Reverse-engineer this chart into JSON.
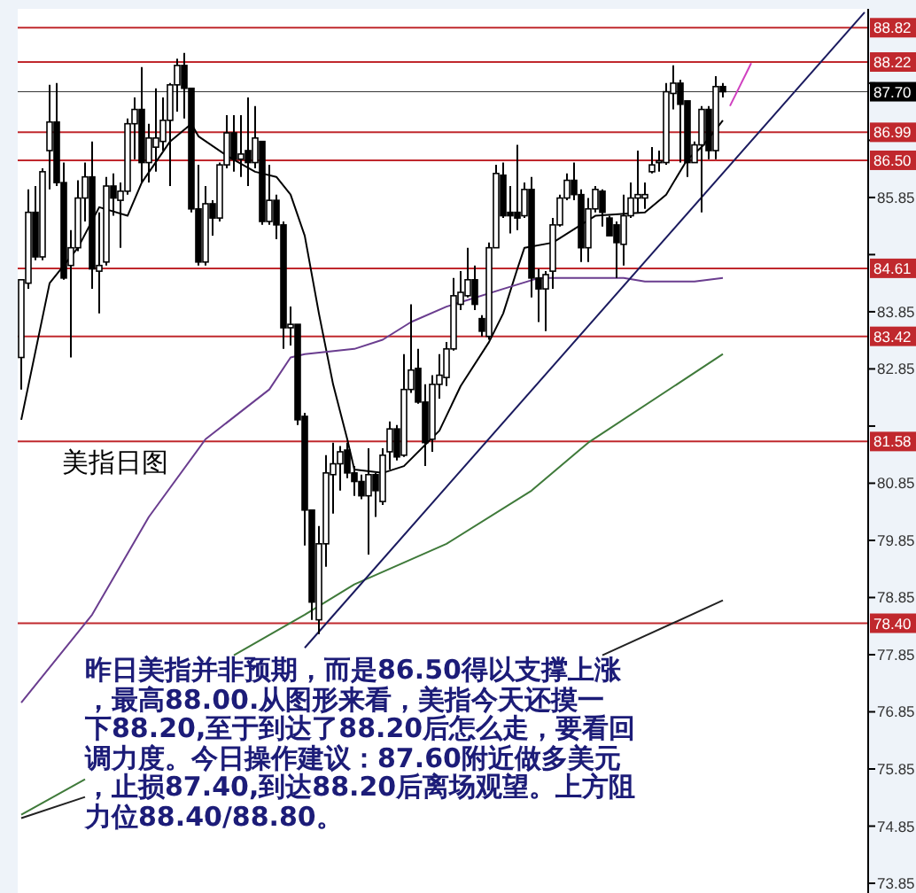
{
  "chart_data": {
    "type": "candlestick",
    "title": "美指日图",
    "annotations": [
      "昨日美指并非预期，而是86.50得以支撑上涨",
      "，最高88.00.从图形来看，美指今天还摸一",
      "下88.20,至于到达了88.20后怎么走，要看回",
      "调力度。今日操作建议：87.60附近做多美元",
      "，止损87.40,到达88.20后离场观望。上方阻",
      "力位88.40/88.80。"
    ],
    "categories": [
      null,
      null,
      null,
      null,
      null,
      null,
      null,
      null,
      null,
      null,
      null,
      null,
      null,
      null,
      null,
      null,
      null,
      null,
      null,
      null,
      null,
      null,
      null,
      null,
      null,
      null,
      null,
      null,
      null,
      null,
      null,
      null,
      null,
      null,
      null,
      null,
      null,
      null,
      null,
      null,
      null,
      null,
      null,
      null,
      null,
      null,
      null,
      null,
      null,
      null,
      null,
      null,
      null,
      null,
      null,
      null,
      null,
      null,
      null,
      null,
      null,
      null,
      null,
      null,
      null,
      null,
      null,
      null,
      null,
      null,
      null,
      null,
      null,
      null,
      null,
      null,
      null,
      null,
      null,
      null,
      null,
      null,
      null,
      null,
      null,
      null,
      null,
      null,
      null,
      null,
      null,
      null,
      null,
      null,
      null,
      null,
      null,
      null,
      null,
      null,
      null,
      null,
      null,
      null,
      null,
      null,
      null,
      null,
      null,
      null,
      null,
      null,
      null,
      null,
      null,
      null,
      null,
      null,
      null,
      null
    ],
    "ohlc": [
      [
        83.05,
        84.41,
        82.49,
        84.41
      ],
      [
        84.35,
        85.99,
        84.25,
        85.59
      ],
      [
        85.59,
        86.05,
        84.75,
        84.81
      ],
      [
        84.81,
        86.36,
        84.75,
        86.3
      ],
      [
        86.67,
        87.82,
        85.99,
        87.17
      ],
      [
        87.17,
        87.85,
        86.05,
        86.11
      ],
      [
        86.11,
        86.46,
        84.41,
        84.44
      ],
      [
        84.66,
        85.28,
        83.05,
        84.97
      ],
      [
        84.97,
        86.15,
        84.91,
        85.84
      ],
      [
        85.84,
        86.46,
        85.43,
        86.21
      ],
      [
        86.21,
        86.83,
        84.25,
        84.6
      ],
      [
        84.56,
        85.59,
        83.82,
        84.66
      ],
      [
        84.72,
        86.21,
        84.66,
        86.05
      ],
      [
        86.05,
        86.27,
        85.53,
        85.84
      ],
      [
        85.8,
        86.11,
        84.97,
        85.96
      ],
      [
        85.96,
        87.23,
        85.9,
        87.14
      ],
      [
        87.14,
        87.6,
        86.52,
        87.39
      ],
      [
        87.39,
        88.13,
        86.11,
        86.46
      ],
      [
        86.46,
        87.14,
        86.11,
        86.89
      ],
      [
        86.73,
        87.76,
        86.3,
        86.89
      ],
      [
        86.83,
        87.6,
        86.67,
        87.2
      ],
      [
        87.2,
        87.85,
        86.05,
        87.82
      ],
      [
        87.82,
        88.28,
        87.35,
        88.16
      ],
      [
        88.16,
        88.38,
        87.23,
        87.76
      ],
      [
        87.76,
        87.76,
        85.59,
        85.65
      ],
      [
        85.65,
        86.42,
        84.66,
        84.72
      ],
      [
        84.72,
        86.05,
        84.66,
        85.74
      ],
      [
        85.74,
        85.8,
        85.18,
        85.49
      ],
      [
        85.49,
        86.46,
        85.43,
        86.42
      ],
      [
        86.42,
        87.29,
        86.36,
        86.98
      ],
      [
        86.98,
        87.29,
        86.3,
        86.52
      ],
      [
        86.52,
        87.29,
        86.21,
        86.61
      ],
      [
        86.67,
        87.6,
        86.05,
        86.46
      ],
      [
        86.46,
        87.45,
        86.36,
        86.89
      ],
      [
        86.83,
        86.83,
        85.37,
        85.43
      ],
      [
        85.43,
        86.42,
        85.37,
        85.8
      ],
      [
        85.8,
        85.9,
        85.12,
        85.37
      ],
      [
        85.37,
        85.43,
        83.2,
        83.57
      ],
      [
        83.57,
        83.94,
        83.26,
        83.63
      ],
      [
        83.63,
        83.63,
        81.87,
        81.96
      ],
      [
        82.02,
        82.08,
        79.76,
        80.38
      ],
      [
        80.38,
        80.38,
        78.46,
        78.77
      ],
      [
        78.46,
        80.1,
        78.21,
        79.79
      ],
      [
        79.79,
        81.34,
        79.39,
        81.03
      ],
      [
        81.0,
        81.56,
        80.32,
        81.19
      ],
      [
        81.19,
        81.5,
        80.72,
        81.4
      ],
      [
        81.43,
        81.56,
        80.94,
        81.03
      ],
      [
        81.03,
        81.15,
        80.63,
        80.88
      ],
      [
        80.88,
        81.0,
        80.57,
        80.63
      ],
      [
        80.63,
        81.46,
        79.6,
        81.0
      ],
      [
        81.0,
        81.03,
        80.26,
        80.72
      ],
      [
        80.53,
        81.46,
        80.47,
        81.34
      ],
      [
        81.4,
        81.93,
        81.09,
        81.8
      ],
      [
        81.8,
        81.87,
        81.25,
        81.31
      ],
      [
        81.34,
        83.11,
        81.31,
        82.49
      ],
      [
        82.49,
        83.98,
        82.43,
        82.83
      ],
      [
        82.86,
        83.2,
        82.24,
        82.27
      ],
      [
        82.27,
        82.58,
        81.15,
        81.56
      ],
      [
        81.62,
        82.74,
        81.4,
        82.58
      ],
      [
        82.58,
        83.11,
        82.33,
        82.74
      ],
      [
        82.7,
        83.32,
        82.55,
        83.2
      ],
      [
        83.2,
        84.44,
        83.17,
        84.13
      ],
      [
        83.98,
        84.56,
        83.88,
        84.19
      ],
      [
        84.13,
        84.97,
        84.1,
        84.41
      ],
      [
        84.41,
        84.66,
        83.88,
        83.98
      ],
      [
        83.73,
        83.79,
        83.42,
        83.51
      ],
      [
        83.42,
        85.06,
        83.36,
        84.97
      ],
      [
        84.97,
        86.42,
        84.97,
        86.27
      ],
      [
        86.24,
        86.46,
        85.49,
        85.53
      ],
      [
        85.59,
        86.05,
        85.22,
        85.53
      ],
      [
        85.59,
        86.77,
        85.28,
        85.49
      ],
      [
        85.53,
        86.11,
        85.49,
        85.99
      ],
      [
        85.99,
        86.21,
        84.1,
        84.44
      ],
      [
        84.44,
        84.6,
        83.67,
        84.25
      ],
      [
        84.25,
        84.56,
        83.51,
        84.5
      ],
      [
        84.56,
        85.49,
        84.25,
        85.37
      ],
      [
        85.37,
        85.9,
        85.34,
        85.84
      ],
      [
        85.84,
        86.27,
        85.8,
        86.15
      ],
      [
        86.15,
        86.46,
        85.8,
        85.9
      ],
      [
        85.9,
        85.99,
        84.72,
        84.97
      ],
      [
        84.97,
        85.84,
        84.72,
        85.65
      ],
      [
        85.65,
        86.05,
        85.59,
        85.99
      ],
      [
        85.96,
        85.99,
        85.34,
        85.59
      ],
      [
        85.49,
        85.53,
        85.18,
        85.18
      ],
      [
        85.37,
        85.43,
        84.44,
        85.06
      ],
      [
        85.03,
        85.9,
        84.66,
        85.53
      ],
      [
        85.53,
        86.11,
        85.49,
        85.84
      ],
      [
        85.84,
        86.67,
        85.59,
        85.9
      ],
      [
        85.84,
        86.11,
        85.65,
        85.9
      ],
      [
        86.3,
        86.73,
        86.27,
        86.42
      ],
      [
        86.46,
        86.67,
        86.3,
        86.49
      ],
      [
        86.46,
        87.85,
        86.42,
        87.7
      ],
      [
        87.67,
        88.16,
        87.39,
        87.85
      ],
      [
        87.85,
        87.91,
        86.46,
        87.48
      ],
      [
        87.54,
        87.54,
        86.21,
        86.46
      ],
      [
        86.46,
        86.83,
        86.46,
        86.77
      ],
      [
        86.77,
        87.45,
        85.59,
        87.39
      ],
      [
        87.39,
        87.45,
        86.52,
        86.67
      ],
      [
        86.67,
        87.97,
        86.52,
        87.79
      ],
      [
        87.79,
        87.85,
        87.6,
        87.7
      ],
      null,
      null,
      null,
      null,
      null,
      null,
      null,
      null,
      null,
      null,
      null,
      null,
      null,
      null,
      null,
      null,
      null,
      null,
      null,
      null
    ],
    "series": [
      {
        "type": "line",
        "color": "#000000",
        "values": [
          81.96,
          null,
          null,
          null,
          84.35,
          null,
          84.66,
          null,
          84.97,
          null,
          null,
          85.68,
          null,
          null,
          null,
          85.53,
          null,
          86.11,
          null,
          null,
          null,
          86.83,
          null,
          null,
          87.14,
          86.92,
          null,
          null,
          null,
          86.58,
          null,
          null,
          null,
          86.3,
          null,
          null,
          86.21,
          null,
          85.9,
          null,
          85.18,
          null,
          83.82,
          null,
          82.58,
          null,
          81.62,
          81.09,
          null,
          null,
          null,
          81.03,
          null,
          null,
          81.15,
          null,
          null,
          null,
          null,
          81.77,
          null,
          null,
          82.55,
          null,
          null,
          null,
          83.32,
          null,
          83.82,
          null,
          84.6,
          84.97,
          null,
          null,
          null,
          85.06,
          null,
          null,
          null,
          null,
          null,
          85.53,
          null,
          null,
          null,
          null,
          null,
          null,
          85.59,
          null,
          null,
          85.9,
          null,
          null,
          86.52,
          null,
          86.73,
          null,
          87.04,
          87.2,
          null,
          null,
          null,
          null,
          null,
          null,
          null,
          null,
          null,
          null,
          null,
          null,
          null,
          null,
          null,
          null,
          null,
          null,
          null,
          null
        ]
      },
      {
        "type": "line",
        "color": "#6a3d8f",
        "values": [
          77.01,
          null,
          null,
          null,
          null,
          null,
          null,
          null,
          null,
          null,
          78.55,
          null,
          null,
          null,
          null,
          null,
          null,
          null,
          80.26,
          null,
          null,
          null,
          null,
          null,
          null,
          null,
          81.62,
          null,
          null,
          null,
          null,
          null,
          null,
          null,
          null,
          82.49,
          null,
          null,
          83.05,
          null,
          83.11,
          null,
          null,
          null,
          null,
          null,
          null,
          83.2,
          null,
          null,
          null,
          83.36,
          null,
          null,
          null,
          83.67,
          null,
          null,
          null,
          null,
          83.94,
          null,
          null,
          null,
          null,
          null,
          null,
          null,
          84.25,
          null,
          null,
          null,
          null,
          84.44,
          null,
          null,
          null,
          null,
          null,
          null,
          null,
          null,
          null,
          null,
          null,
          84.44,
          null,
          null,
          84.38,
          null,
          null,
          null,
          null,
          null,
          null,
          84.38,
          null,
          null,
          null,
          84.44,
          null,
          null,
          null,
          null,
          null,
          null,
          null,
          null,
          null,
          null,
          null,
          null,
          null,
          null,
          null,
          null,
          null,
          null,
          null,
          null
        ]
      },
      {
        "type": "line",
        "color": "#3f7a3a",
        "values": [
          75.05,
          null,
          null,
          null,
          null,
          null,
          null,
          null,
          null,
          75.67,
          null,
          null,
          null,
          null,
          null,
          null,
          null,
          null,
          null,
          null,
          null,
          null,
          null,
          null,
          null,
          null,
          null,
          null,
          null,
          null,
          null,
          null,
          null,
          null,
          null,
          null,
          null,
          null,
          null,
          null,
          null,
          null,
          null,
          null,
          null,
          null,
          null,
          null,
          null,
          null,
          null,
          null,
          null,
          null,
          null,
          null,
          null,
          null,
          null,
          null,
          null,
          null,
          null,
          null,
          null,
          null,
          null,
          null,
          null,
          null,
          null,
          null,
          null,
          null,
          null,
          null,
          null,
          null,
          null,
          null,
          null,
          null,
          null,
          null,
          null,
          null,
          null,
          null,
          null,
          null,
          null,
          null,
          null,
          null,
          null,
          null,
          null,
          null,
          null,
          null,
          null,
          null,
          null,
          null,
          null,
          null,
          null,
          null,
          null,
          null,
          null,
          null,
          null,
          null,
          null,
          null,
          null,
          null,
          null,
          null
        ]
      },
      {
        "type": "line",
        "color": "#3f7a3a",
        "values": [
          null,
          null,
          null,
          null,
          null,
          null,
          null,
          null,
          null,
          null,
          null,
          null,
          null,
          null,
          null,
          null,
          null,
          null,
          null,
          null,
          null,
          null,
          null,
          null,
          null,
          null,
          null,
          null,
          null,
          null,
          77.84,
          null,
          null,
          null,
          null,
          null,
          null,
          null,
          null,
          null,
          78.55,
          null,
          null,
          null,
          null,
          null,
          null,
          79.08,
          null,
          null,
          null,
          null,
          null,
          null,
          null,
          null,
          null,
          null,
          null,
          null,
          79.79,
          null,
          null,
          null,
          null,
          null,
          null,
          null,
          null,
          null,
          null,
          null,
          80.72,
          null,
          null,
          null,
          null,
          null,
          null,
          null,
          81.56,
          null,
          null,
          null,
          null,
          null,
          null,
          null,
          null,
          null,
          null,
          null,
          null,
          null,
          null,
          null,
          null,
          null,
          null,
          83.11,
          null,
          null,
          null,
          null,
          null,
          null,
          null,
          null,
          null,
          null,
          null,
          null,
          null,
          null,
          null,
          null,
          null,
          null,
          null,
          null
        ]
      },
      {
        "type": "line",
        "color": "#222222",
        "values": [
          74.99,
          null,
          null,
          null,
          null,
          null,
          null,
          null,
          null,
          75.36,
          null,
          null,
          null,
          null,
          null,
          null,
          null,
          null,
          null,
          null,
          null,
          null,
          null,
          null,
          null,
          null,
          null,
          null,
          null,
          null,
          null,
          null,
          null,
          null,
          null,
          null,
          null,
          null,
          null,
          null,
          null,
          null,
          null,
          null,
          null,
          null,
          null,
          null,
          null,
          null,
          null,
          null,
          null,
          null,
          null,
          null,
          null,
          null,
          null,
          null,
          null,
          null,
          null,
          null,
          null,
          null,
          null,
          null,
          null,
          null,
          null,
          null,
          null,
          null,
          null,
          null,
          null,
          null,
          null,
          null,
          null,
          null,
          null,
          null,
          null,
          null,
          null,
          null,
          null,
          null,
          null,
          null,
          null,
          null,
          null,
          null,
          null,
          null,
          null,
          null,
          null,
          null,
          null,
          null,
          null,
          null,
          null,
          null,
          null,
          null,
          null,
          null,
          null,
          null,
          null,
          null,
          null,
          null,
          null,
          null
        ]
      },
      {
        "type": "line",
        "color": "#222222",
        "values": [
          null,
          null,
          null,
          null,
          null,
          null,
          null,
          null,
          null,
          null,
          null,
          null,
          null,
          null,
          null,
          null,
          null,
          null,
          null,
          null,
          null,
          null,
          null,
          null,
          null,
          null,
          null,
          null,
          null,
          null,
          null,
          null,
          null,
          null,
          null,
          null,
          null,
          null,
          null,
          null,
          null,
          null,
          null,
          null,
          null,
          null,
          null,
          null,
          null,
          null,
          null,
          null,
          null,
          null,
          null,
          null,
          null,
          null,
          null,
          null,
          null,
          null,
          null,
          null,
          null,
          null,
          null,
          null,
          null,
          null,
          null,
          null,
          null,
          null,
          null,
          null,
          null,
          null,
          null,
          null,
          null,
          null,
          77.84,
          null,
          null,
          null,
          null,
          null,
          null,
          null,
          null,
          null,
          null,
          null,
          null,
          null,
          null,
          null,
          null,
          78.8,
          null,
          null,
          null,
          null,
          null,
          null,
          null,
          null,
          null,
          null,
          null,
          null,
          null,
          null,
          null,
          null,
          null,
          null,
          null,
          null
        ]
      },
      {
        "type": "line",
        "color": "#1a1a5e",
        "values": [
          null,
          null,
          null,
          null,
          null,
          null,
          null,
          null,
          null,
          null,
          null,
          null,
          null,
          null,
          null,
          null,
          null,
          null,
          null,
          null,
          null,
          null,
          null,
          null,
          null,
          null,
          null,
          null,
          null,
          null,
          null,
          null,
          null,
          null,
          null,
          null,
          null,
          null,
          null,
          null,
          77.97,
          null,
          null,
          null,
          null,
          null,
          null,
          null,
          null,
          null,
          null,
          null,
          null,
          null,
          null,
          null,
          null,
          null,
          null,
          null,
          null,
          null,
          null,
          null,
          null,
          null,
          null,
          null,
          null,
          null,
          null,
          null,
          null,
          null,
          null,
          null,
          null,
          null,
          null,
          null,
          null,
          null,
          null,
          null,
          null,
          null,
          null,
          null,
          null,
          null,
          null,
          null,
          null,
          null,
          null,
          null,
          null,
          null,
          null,
          null,
          null,
          null,
          null,
          null,
          null,
          null,
          null,
          null,
          null,
          null,
          null,
          null,
          null,
          null,
          null,
          null,
          null,
          null,
          null,
          89.09
        ]
      },
      {
        "type": "line",
        "color": "#d040c0",
        "values": [
          null,
          null,
          null,
          null,
          null,
          null,
          null,
          null,
          null,
          null,
          null,
          null,
          null,
          null,
          null,
          null,
          null,
          null,
          null,
          null,
          null,
          null,
          null,
          null,
          null,
          null,
          null,
          null,
          null,
          null,
          null,
          null,
          null,
          null,
          null,
          null,
          null,
          null,
          null,
          null,
          null,
          null,
          null,
          null,
          null,
          null,
          null,
          null,
          null,
          null,
          null,
          null,
          null,
          null,
          null,
          null,
          null,
          null,
          null,
          null,
          null,
          null,
          null,
          null,
          null,
          null,
          null,
          null,
          null,
          null,
          null,
          null,
          null,
          null,
          null,
          null,
          null,
          null,
          null,
          null,
          null,
          null,
          null,
          null,
          null,
          null,
          null,
          null,
          null,
          null,
          null,
          null,
          null,
          null,
          null,
          null,
          null,
          null,
          null,
          null,
          87.45,
          null,
          null,
          88.2,
          null,
          null,
          null,
          null,
          null,
          null,
          null,
          null,
          null,
          null,
          null,
          null,
          null,
          null,
          null,
          null
        ]
      }
    ],
    "ylim": [
      73.68,
      89.15
    ],
    "yticks": [
      73.85,
      74.85,
      75.85,
      76.85,
      77.85,
      78.85,
      79.85,
      80.85,
      {
        "value": 81.85,
        "label": null
      },
      82.85,
      83.85,
      {
        "value": 84.85,
        "label": null
      },
      85.85,
      {
        "value": 86.85,
        "label": null
      },
      {
        "value": 87.85,
        "label": null
      }
    ],
    "tick_labels": "y",
    "ref_lines": [
      {
        "axis": "y",
        "value": 88.82,
        "label": "88.82",
        "color": "#c0282d"
      },
      {
        "axis": "y",
        "value": 88.22,
        "label": "88.22",
        "color": "#c0282d"
      },
      {
        "axis": "y",
        "value": 87.7,
        "label": "87.70",
        "color": "#000000"
      },
      {
        "axis": "y",
        "value": 86.99,
        "label": "86.99",
        "color": "#c0282d"
      },
      {
        "axis": "y",
        "value": 86.5,
        "label": "86.50",
        "color": "#c0282d"
      },
      {
        "axis": "y",
        "value": 84.61,
        "label": "84.61",
        "color": "#c0282d"
      },
      {
        "axis": "y",
        "value": 83.42,
        "label": "83.42",
        "color": "#c0282d"
      },
      {
        "axis": "y",
        "value": 81.58,
        "label": "81.58",
        "color": "#c0282d"
      },
      {
        "axis": "y",
        "value": 78.4,
        "label": "78.40",
        "color": "#c0282d"
      }
    ]
  }
}
